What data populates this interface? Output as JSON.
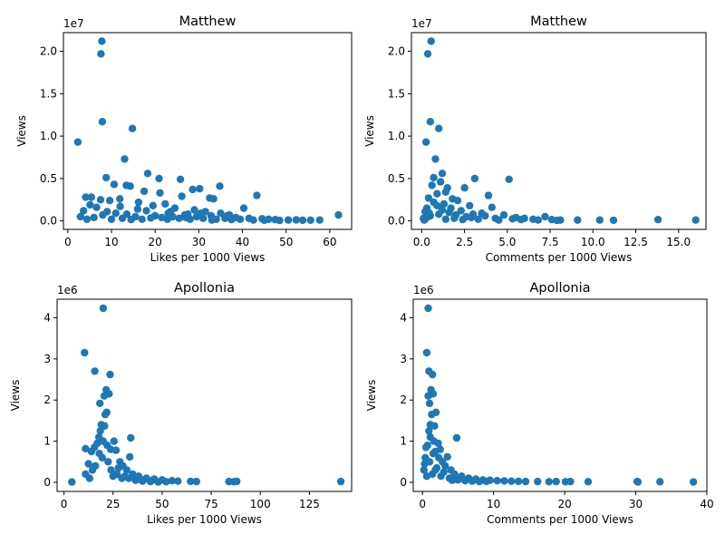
{
  "chart_data": [
    {
      "type": "scatter",
      "title": "Matthew",
      "xlabel": "Likes per 1000 Views",
      "ylabel": "Views",
      "y_offset_label": "1e7",
      "y_scale": 10000000,
      "xlim": [
        -1.0,
        65.0
      ],
      "ylim": [
        -1000000,
        22200000
      ],
      "xticks": [
        0,
        10,
        20,
        30,
        40,
        50,
        60
      ],
      "xtick_labels": [
        "0",
        "10",
        "20",
        "30",
        "40",
        "50",
        "60"
      ],
      "yticks": [
        0,
        5000000,
        10000000,
        15000000,
        20000000
      ],
      "ytick_labels": [
        "0.0",
        "0.5",
        "1.0",
        "1.5",
        "2.0"
      ],
      "grid": false,
      "color": "#1f77b4",
      "points": [
        [
          7.8,
          21200000
        ],
        [
          7.6,
          19700000
        ],
        [
          7.9,
          11700000
        ],
        [
          2.3,
          9300000
        ],
        [
          14.8,
          10900000
        ],
        [
          13.0,
          7300000
        ],
        [
          18.3,
          5600000
        ],
        [
          8.8,
          5100000
        ],
        [
          20.9,
          5000000
        ],
        [
          25.8,
          4900000
        ],
        [
          10.6,
          4300000
        ],
        [
          13.4,
          4200000
        ],
        [
          14.3,
          4100000
        ],
        [
          34.8,
          4100000
        ],
        [
          30.2,
          3800000
        ],
        [
          28.6,
          3700000
        ],
        [
          17.5,
          3500000
        ],
        [
          21.1,
          3300000
        ],
        [
          43.3,
          3000000
        ],
        [
          4.1,
          2800000
        ],
        [
          5.4,
          2800000
        ],
        [
          26.1,
          2900000
        ],
        [
          32.5,
          2700000
        ],
        [
          33.4,
          2600000
        ],
        [
          7.5,
          2500000
        ],
        [
          11.9,
          2600000
        ],
        [
          9.6,
          2400000
        ],
        [
          16.2,
          2200000
        ],
        [
          22.3,
          2000000
        ],
        [
          5.1,
          1900000
        ],
        [
          6.6,
          1600000
        ],
        [
          40.3,
          1500000
        ],
        [
          3.6,
          1200000
        ],
        [
          2.9,
          500000
        ],
        [
          4.4,
          200000
        ],
        [
          50.5,
          100000
        ],
        [
          52.3,
          120000
        ],
        [
          53.8,
          80000
        ],
        [
          55.6,
          90000
        ],
        [
          57.7,
          100000
        ],
        [
          62.0,
          700000
        ],
        [
          46.0,
          200000
        ],
        [
          47.5,
          150000
        ],
        [
          44.5,
          250000
        ],
        [
          41.5,
          300000
        ],
        [
          38.5,
          400000
        ],
        [
          36.5,
          600000
        ],
        [
          35.0,
          900000
        ],
        [
          31.5,
          1100000
        ],
        [
          29.0,
          1300000
        ],
        [
          27.5,
          800000
        ],
        [
          24.5,
          1500000
        ],
        [
          23.0,
          900000
        ],
        [
          19.5,
          1800000
        ],
        [
          18.0,
          1200000
        ],
        [
          16.0,
          1400000
        ],
        [
          12.0,
          1700000
        ],
        [
          11.0,
          900000
        ],
        [
          9.0,
          1100000
        ],
        [
          8.0,
          700000
        ],
        [
          6.0,
          400000
        ],
        [
          12.5,
          300000
        ],
        [
          15.5,
          500000
        ],
        [
          17.0,
          200000
        ],
        [
          20.0,
          600000
        ],
        [
          21.5,
          400000
        ],
        [
          22.8,
          200000
        ],
        [
          24.0,
          500000
        ],
        [
          25.5,
          300000
        ],
        [
          26.8,
          700000
        ],
        [
          28.0,
          200000
        ],
        [
          29.5,
          500000
        ],
        [
          31.0,
          300000
        ],
        [
          32.8,
          600000
        ],
        [
          34.0,
          200000
        ],
        [
          36.0,
          300000
        ],
        [
          37.5,
          150000
        ],
        [
          39.5,
          200000
        ],
        [
          42.5,
          100000
        ],
        [
          45.0,
          80000
        ],
        [
          48.5,
          60000
        ],
        [
          10.0,
          200000
        ],
        [
          13.5,
          800000
        ],
        [
          14.5,
          150000
        ],
        [
          19.0,
          350000
        ],
        [
          23.5,
          1100000
        ],
        [
          27.0,
          400000
        ],
        [
          30.5,
          900000
        ],
        [
          33.0,
          100000
        ],
        [
          37.0,
          700000
        ]
      ]
    },
    {
      "type": "scatter",
      "title": "Matthew",
      "xlabel": "Comments per 1000 Views",
      "ylabel": "Views",
      "y_offset_label": "1e7",
      "y_scale": 10000000,
      "xlim": [
        -0.6,
        16.6
      ],
      "ylim": [
        -1000000,
        22200000
      ],
      "xticks": [
        0.0,
        2.5,
        5.0,
        7.5,
        10.0,
        12.5,
        15.0
      ],
      "xtick_labels": [
        "0.0",
        "2.5",
        "5.0",
        "7.5",
        "10.0",
        "12.5",
        "15.0"
      ],
      "yticks": [
        0,
        5000000,
        10000000,
        15000000,
        20000000
      ],
      "ytick_labels": [
        "0.0",
        "0.5",
        "1.0",
        "1.5",
        "2.0"
      ],
      "grid": false,
      "color": "#1f77b4",
      "points": [
        [
          0.55,
          21200000
        ],
        [
          0.35,
          19700000
        ],
        [
          0.5,
          11700000
        ],
        [
          0.25,
          9300000
        ],
        [
          1.0,
          10900000
        ],
        [
          0.8,
          7300000
        ],
        [
          1.2,
          5600000
        ],
        [
          0.7,
          5100000
        ],
        [
          3.1,
          5000000
        ],
        [
          5.1,
          4900000
        ],
        [
          1.1,
          4600000
        ],
        [
          1.5,
          3900000
        ],
        [
          2.5,
          3900000
        ],
        [
          0.6,
          4200000
        ],
        [
          1.4,
          3400000
        ],
        [
          3.9,
          3000000
        ],
        [
          0.9,
          3200000
        ],
        [
          1.8,
          2600000
        ],
        [
          0.4,
          2700000
        ],
        [
          2.1,
          2400000
        ],
        [
          4.1,
          1600000
        ],
        [
          0.3,
          1500000
        ],
        [
          1.3,
          2000000
        ],
        [
          2.8,
          1800000
        ],
        [
          0.2,
          1100000
        ],
        [
          6.0,
          300000
        ],
        [
          6.5,
          200000
        ],
        [
          7.2,
          500000
        ],
        [
          7.6,
          150000
        ],
        [
          8.1,
          100000
        ],
        [
          9.1,
          100000
        ],
        [
          10.4,
          100000
        ],
        [
          11.2,
          80000
        ],
        [
          13.8,
          150000
        ],
        [
          16.0,
          100000
        ],
        [
          4.8,
          700000
        ],
        [
          5.5,
          400000
        ],
        [
          3.5,
          900000
        ],
        [
          2.3,
          1200000
        ],
        [
          1.7,
          1500000
        ],
        [
          1.0,
          800000
        ],
        [
          0.5,
          600000
        ],
        [
          0.1,
          300000
        ],
        [
          0.15,
          100000
        ],
        [
          2.9,
          400000
        ],
        [
          3.3,
          200000
        ],
        [
          4.3,
          300000
        ],
        [
          5.8,
          150000
        ],
        [
          6.8,
          100000
        ],
        [
          7.9,
          60000
        ],
        [
          0.7,
          2200000
        ],
        [
          1.6,
          1000000
        ],
        [
          2.0,
          700000
        ],
        [
          2.6,
          500000
        ],
        [
          3.7,
          600000
        ],
        [
          4.5,
          100000
        ],
        [
          5.3,
          250000
        ],
        [
          0.9,
          1800000
        ],
        [
          1.2,
          1300000
        ],
        [
          0.45,
          900000
        ],
        [
          1.9,
          300000
        ],
        [
          2.4,
          150000
        ],
        [
          3.0,
          800000
        ],
        [
          0.3,
          400000
        ],
        [
          1.4,
          200000
        ]
      ]
    },
    {
      "type": "scatter",
      "title": "Apollonia",
      "xlabel": "Likes per 1000 Views",
      "ylabel": "Views",
      "y_offset_label": "1e6",
      "y_scale": 1000000,
      "xlim": [
        -3.5,
        146.5
      ],
      "ylim": [
        -220000,
        4450000
      ],
      "xticks": [
        0,
        25,
        50,
        75,
        100,
        125
      ],
      "xtick_labels": [
        "0",
        "25",
        "50",
        "75",
        "100",
        "125"
      ],
      "yticks": [
        0,
        1000000,
        2000000,
        3000000,
        4000000
      ],
      "ytick_labels": [
        "0",
        "1",
        "2",
        "3",
        "4"
      ],
      "grid": false,
      "color": "#1f77b4",
      "points": [
        [
          20.0,
          4230000
        ],
        [
          10.5,
          3150000
        ],
        [
          15.7,
          2700000
        ],
        [
          23.5,
          2620000
        ],
        [
          21.5,
          2250000
        ],
        [
          23.0,
          2150000
        ],
        [
          20.5,
          2100000
        ],
        [
          18.3,
          1920000
        ],
        [
          21.8,
          1700000
        ],
        [
          21.0,
          1650000
        ],
        [
          19.0,
          1400000
        ],
        [
          20.7,
          1370000
        ],
        [
          18.5,
          1250000
        ],
        [
          17.8,
          1100000
        ],
        [
          34.0,
          1080000
        ],
        [
          25.5,
          1000000
        ],
        [
          17.0,
          950000
        ],
        [
          15.5,
          850000
        ],
        [
          11.0,
          820000
        ],
        [
          22.0,
          900000
        ],
        [
          14.0,
          750000
        ],
        [
          26.5,
          780000
        ],
        [
          33.5,
          620000
        ],
        [
          28.5,
          500000
        ],
        [
          12.5,
          450000
        ],
        [
          30.0,
          400000
        ],
        [
          32.0,
          300000
        ],
        [
          35.0,
          200000
        ],
        [
          38.0,
          150000
        ],
        [
          42.0,
          100000
        ],
        [
          46.0,
          80000
        ],
        [
          50.0,
          60000
        ],
        [
          55.0,
          40000
        ],
        [
          58.0,
          30000
        ],
        [
          64.5,
          25000
        ],
        [
          67.5,
          20000
        ],
        [
          84.0,
          20000
        ],
        [
          86.5,
          15000
        ],
        [
          88.0,
          25000
        ],
        [
          141.0,
          20000
        ],
        [
          4.0,
          10000
        ],
        [
          11.0,
          200000
        ],
        [
          13.0,
          100000
        ],
        [
          16.0,
          400000
        ],
        [
          19.5,
          600000
        ],
        [
          24.0,
          300000
        ],
        [
          27.0,
          200000
        ],
        [
          29.5,
          100000
        ],
        [
          31.0,
          150000
        ],
        [
          36.5,
          50000
        ],
        [
          40.0,
          30000
        ],
        [
          44.0,
          20000
        ],
        [
          48.0,
          10000
        ],
        [
          52.0,
          15000
        ],
        [
          22.5,
          500000
        ],
        [
          25.0,
          150000
        ],
        [
          18.0,
          700000
        ],
        [
          14.5,
          300000
        ],
        [
          20.0,
          1000000
        ],
        [
          23.8,
          800000
        ],
        [
          27.8,
          350000
        ],
        [
          33.0,
          100000
        ],
        [
          37.5,
          120000
        ],
        [
          45.0,
          50000
        ],
        [
          39.0,
          80000
        ]
      ]
    },
    {
      "type": "scatter",
      "title": "Apollonia",
      "xlabel": "Comments per 1000 Views",
      "ylabel": "Views",
      "y_offset_label": "1e6",
      "y_scale": 1000000,
      "xlim": [
        -1.3,
        40.0
      ],
      "ylim": [
        -220000,
        4450000
      ],
      "xticks": [
        0,
        10,
        20,
        30,
        40
      ],
      "xtick_labels": [
        "0",
        "10",
        "20",
        "30",
        "40"
      ],
      "yticks": [
        0,
        1000000,
        2000000,
        3000000,
        4000000
      ],
      "ytick_labels": [
        "0",
        "1",
        "2",
        "3",
        "4"
      ],
      "grid": false,
      "color": "#1f77b4",
      "points": [
        [
          0.8,
          4230000
        ],
        [
          0.6,
          3150000
        ],
        [
          0.9,
          2700000
        ],
        [
          1.4,
          2620000
        ],
        [
          1.2,
          2250000
        ],
        [
          1.5,
          2150000
        ],
        [
          0.8,
          2100000
        ],
        [
          1.0,
          1920000
        ],
        [
          1.9,
          1700000
        ],
        [
          1.3,
          1650000
        ],
        [
          1.1,
          1400000
        ],
        [
          1.7,
          1370000
        ],
        [
          0.9,
          1250000
        ],
        [
          4.8,
          1080000
        ],
        [
          1.6,
          1000000
        ],
        [
          2.2,
          950000
        ],
        [
          0.5,
          850000
        ],
        [
          2.5,
          800000
        ],
        [
          1.8,
          750000
        ],
        [
          3.5,
          620000
        ],
        [
          2.8,
          500000
        ],
        [
          0.3,
          450000
        ],
        [
          3.2,
          400000
        ],
        [
          4.0,
          300000
        ],
        [
          4.5,
          200000
        ],
        [
          5.5,
          150000
        ],
        [
          6.5,
          100000
        ],
        [
          7.5,
          80000
        ],
        [
          8.5,
          60000
        ],
        [
          9.5,
          50000
        ],
        [
          10.5,
          40000
        ],
        [
          11.5,
          35000
        ],
        [
          12.5,
          30000
        ],
        [
          13.5,
          25000
        ],
        [
          14.5,
          20000
        ],
        [
          16.2,
          20000
        ],
        [
          17.8,
          15000
        ],
        [
          18.8,
          20000
        ],
        [
          20.1,
          15000
        ],
        [
          20.8,
          20000
        ],
        [
          23.3,
          15000
        ],
        [
          30.2,
          20000
        ],
        [
          30.3,
          10000
        ],
        [
          33.4,
          15000
        ],
        [
          38.1,
          10000
        ],
        [
          0.2,
          300000
        ],
        [
          0.4,
          600000
        ],
        [
          0.7,
          900000
        ],
        [
          1.0,
          500000
        ],
        [
          1.4,
          200000
        ],
        [
          2.0,
          350000
        ],
        [
          2.6,
          150000
        ],
        [
          3.0,
          250000
        ],
        [
          3.8,
          100000
        ],
        [
          5.0,
          60000
        ],
        [
          6.0,
          40000
        ],
        [
          7.0,
          30000
        ],
        [
          8.0,
          20000
        ],
        [
          9.0,
          25000
        ],
        [
          1.1,
          1100000
        ],
        [
          1.5,
          700000
        ],
        [
          0.6,
          150000
        ],
        [
          2.3,
          600000
        ],
        [
          1.8,
          300000
        ],
        [
          4.2,
          50000
        ]
      ]
    }
  ]
}
